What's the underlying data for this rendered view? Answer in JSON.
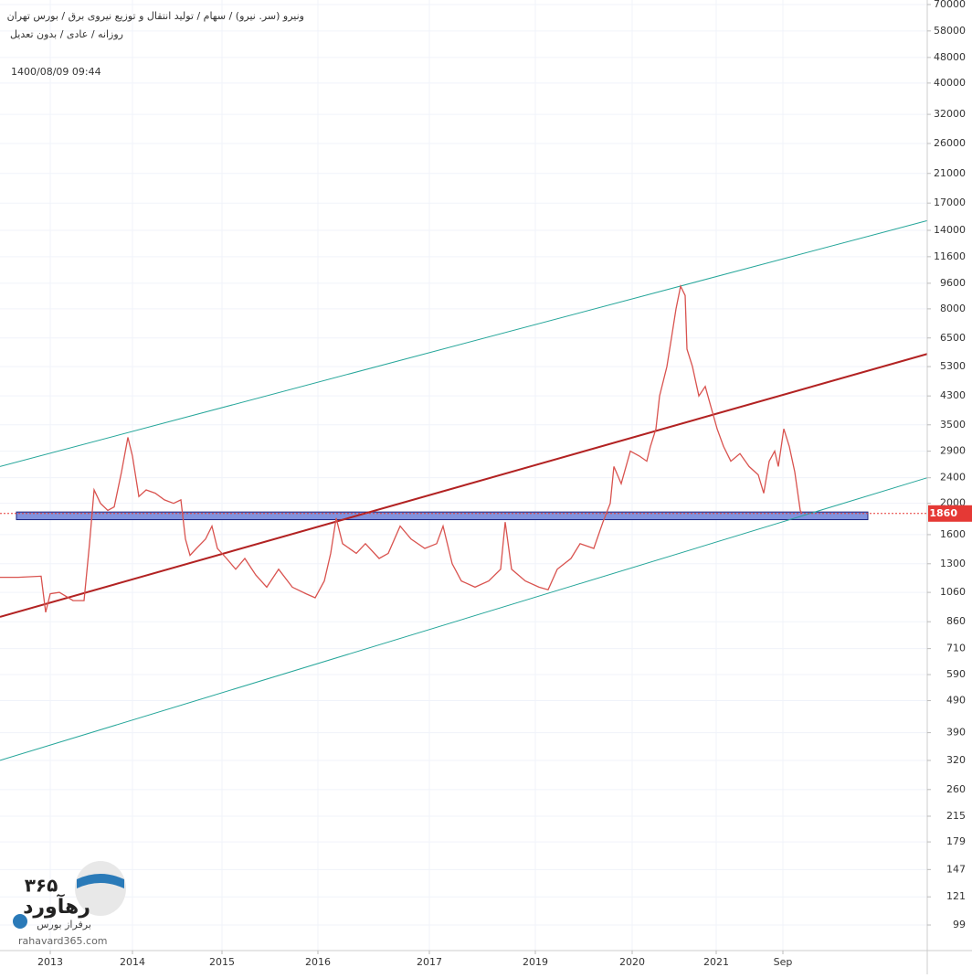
{
  "chart_data": {
    "type": "line",
    "title": "ونیرو (سر. نیرو) / سهام / تولید انتقال و توزیع نیروی برق / بورس تهران",
    "subtitle": "روزانه / عادی / بدون تعدیل",
    "timestamp": "1400/08/09 09:44",
    "log_scale": true,
    "grid": true,
    "xlim": [
      0,
      1015
    ],
    "ylim": [
      82.5,
      72300
    ],
    "xticks": [
      {
        "value": 55,
        "label": "2013"
      },
      {
        "value": 145,
        "label": "2014"
      },
      {
        "value": 243,
        "label": "2015"
      },
      {
        "value": 348,
        "label": "2016"
      },
      {
        "value": 470,
        "label": "2017"
      },
      {
        "value": 586,
        "label": "2019"
      },
      {
        "value": 692,
        "label": "2020"
      },
      {
        "value": 784,
        "label": "2021"
      },
      {
        "value": 857,
        "label": "Sep"
      }
    ],
    "yticks": [
      70000,
      58000,
      48000,
      40000,
      32000,
      26000,
      21000,
      17000,
      14000,
      11600,
      9600,
      8000,
      6500,
      5300,
      4300,
      3500,
      2900,
      2400,
      2000,
      1600,
      1300,
      1060,
      860,
      710,
      590,
      490,
      390,
      320,
      260,
      215,
      179,
      147,
      121,
      99
    ],
    "series": [
      {
        "color": "#d9534f",
        "x": [
          0,
          20,
          45,
          50,
          55,
          65,
          80,
          92,
          98,
          103,
          110,
          118,
          125,
          133,
          140,
          145,
          152,
          160,
          170,
          180,
          190,
          198,
          203,
          208,
          215,
          225,
          232,
          238,
          248,
          258,
          268,
          280,
          292,
          305,
          320,
          335,
          345,
          355,
          362,
          368,
          375,
          390,
          400,
          415,
          425,
          438,
          450,
          465,
          478,
          485,
          495,
          505,
          520,
          535,
          548,
          553,
          560,
          575,
          590,
          600,
          610,
          625,
          635,
          650,
          660,
          668,
          672,
          680,
          690,
          700,
          708,
          712,
          718,
          722,
          730,
          735,
          740,
          745,
          750,
          752,
          758,
          765,
          772,
          778,
          785,
          792,
          800,
          810,
          820,
          830,
          836,
          842,
          848,
          852,
          858,
          864,
          870,
          876,
          878
        ],
        "values": [
          1180,
          1180,
          1190,
          920,
          1050,
          1060,
          1000,
          1000,
          1500,
          2200,
          2000,
          1900,
          1950,
          2500,
          3200,
          2800,
          2100,
          2200,
          2150,
          2050,
          2000,
          2050,
          1550,
          1380,
          1450,
          1550,
          1700,
          1450,
          1350,
          1250,
          1350,
          1200,
          1100,
          1250,
          1100,
          1050,
          1020,
          1150,
          1400,
          1800,
          1500,
          1400,
          1500,
          1350,
          1400,
          1700,
          1550,
          1450,
          1500,
          1700,
          1300,
          1150,
          1100,
          1150,
          1250,
          1750,
          1250,
          1150,
          1100,
          1080,
          1250,
          1350,
          1500,
          1450,
          1750,
          2000,
          2600,
          2300,
          2900,
          2800,
          2700,
          3000,
          3400,
          4300,
          5300,
          6500,
          8000,
          9400,
          8800,
          6000,
          5300,
          4300,
          4600,
          4000,
          3400,
          3000,
          2700,
          2850,
          2600,
          2450,
          2150,
          2700,
          2900,
          2600,
          3400,
          3000,
          2500,
          1900,
          1860
        ]
      }
    ],
    "trend_lines": [
      {
        "color": "#26a69a",
        "x": [
          0,
          1015
        ],
        "values": [
          2600,
          15000
        ]
      },
      {
        "color": "#b22222",
        "x": [
          0,
          1015
        ],
        "values": [
          890,
          5800
        ]
      },
      {
        "color": "#26a69a",
        "x": [
          0,
          1015
        ],
        "values": [
          320,
          2400
        ]
      }
    ],
    "zone": {
      "color": "#6b7fd7",
      "x": [
        18,
        950
      ],
      "values": [
        1780,
        1880
      ]
    },
    "last_price": 1860,
    "last_price_color": "#e53935",
    "logo": {
      "number": "۳۶۵",
      "name": "رهآورد",
      "slogan": "برفراز بورس",
      "url": "rahavard365.com"
    }
  }
}
